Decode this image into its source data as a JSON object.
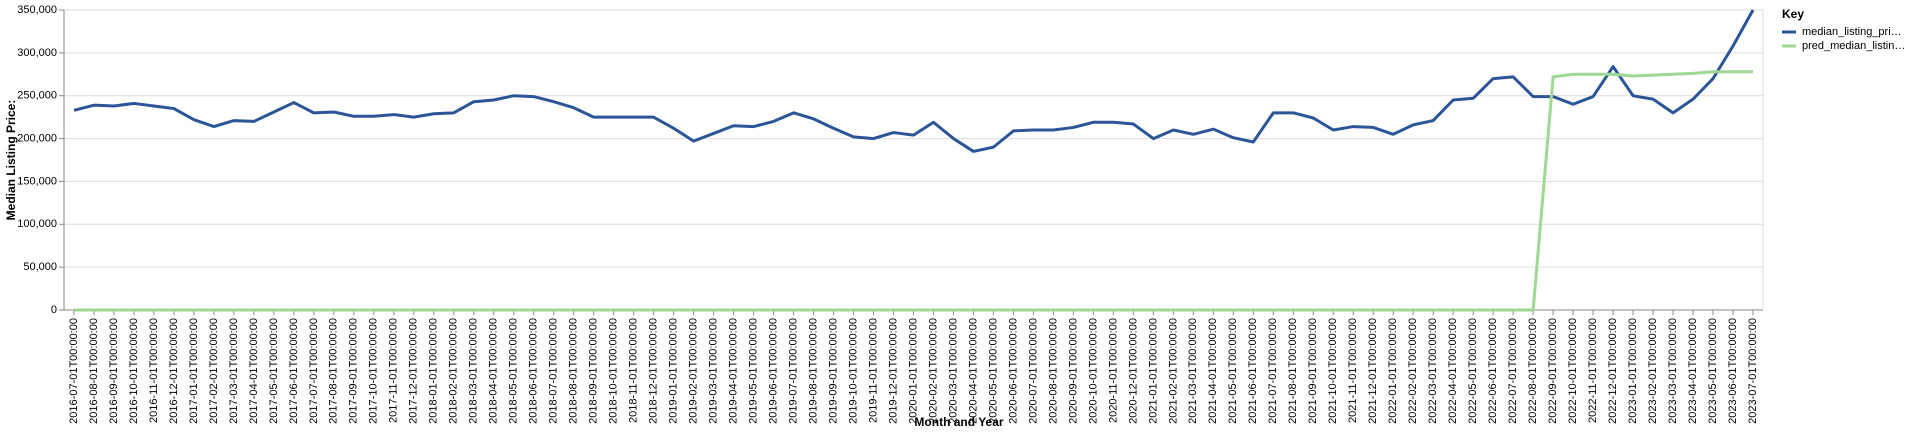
{
  "chart_data": {
    "type": "line",
    "x_label": "Month and Year",
    "y_label": "Median Listing Price:",
    "legend_title": "Key",
    "legend": "top-right",
    "grid": true,
    "categories": [
      "2016-07-01T00:00:00",
      "2016-08-01T00:00:00",
      "2016-09-01T00:00:00",
      "2016-10-01T00:00:00",
      "2016-11-01T00:00:00",
      "2016-12-01T00:00:00",
      "2017-01-01T00:00:00",
      "2017-02-01T00:00:00",
      "2017-03-01T00:00:00",
      "2017-04-01T00:00:00",
      "2017-05-01T00:00:00",
      "2017-06-01T00:00:00",
      "2017-07-01T00:00:00",
      "2017-08-01T00:00:00",
      "2017-09-01T00:00:00",
      "2017-10-01T00:00:00",
      "2017-11-01T00:00:00",
      "2017-12-01T00:00:00",
      "2018-01-01T00:00:00",
      "2018-02-01T00:00:00",
      "2018-03-01T00:00:00",
      "2018-04-01T00:00:00",
      "2018-05-01T00:00:00",
      "2018-06-01T00:00:00",
      "2018-07-01T00:00:00",
      "2018-08-01T00:00:00",
      "2018-09-01T00:00:00",
      "2018-10-01T00:00:00",
      "2018-11-01T00:00:00",
      "2018-12-01T00:00:00",
      "2019-01-01T00:00:00",
      "2019-02-01T00:00:00",
      "2019-03-01T00:00:00",
      "2019-04-01T00:00:00",
      "2019-05-01T00:00:00",
      "2019-06-01T00:00:00",
      "2019-07-01T00:00:00",
      "2019-08-01T00:00:00",
      "2019-09-01T00:00:00",
      "2019-10-01T00:00:00",
      "2019-11-01T00:00:00",
      "2019-12-01T00:00:00",
      "2020-01-01T00:00:00",
      "2020-02-01T00:00:00",
      "2020-03-01T00:00:00",
      "2020-04-01T00:00:00",
      "2020-05-01T00:00:00",
      "2020-06-01T00:00:00",
      "2020-07-01T00:00:00",
      "2020-08-01T00:00:00",
      "2020-09-01T00:00:00",
      "2020-10-01T00:00:00",
      "2020-11-01T00:00:00",
      "2020-12-01T00:00:00",
      "2021-01-01T00:00:00",
      "2021-02-01T00:00:00",
      "2021-03-01T00:00:00",
      "2021-04-01T00:00:00",
      "2021-05-01T00:00:00",
      "2021-06-01T00:00:00",
      "2021-07-01T00:00:00",
      "2021-08-01T00:00:00",
      "2021-09-01T00:00:00",
      "2021-10-01T00:00:00",
      "2021-11-01T00:00:00",
      "2021-12-01T00:00:00",
      "2022-01-01T00:00:00",
      "2022-02-01T00:00:00",
      "2022-03-01T00:00:00",
      "2022-04-01T00:00:00",
      "2022-05-01T00:00:00",
      "2022-06-01T00:00:00",
      "2022-07-01T00:00:00",
      "2022-08-01T00:00:00",
      "2022-09-01T00:00:00",
      "2022-10-01T00:00:00",
      "2022-11-01T00:00:00",
      "2022-12-01T00:00:00",
      "2023-01-01T00:00:00",
      "2023-02-01T00:00:00",
      "2023-03-01T00:00:00",
      "2023-04-01T00:00:00",
      "2023-05-01T00:00:00",
      "2023-06-01T00:00:00",
      "2023-07-01T00:00:00"
    ],
    "series": [
      {
        "name": "median_listing_pri…",
        "color": "#2c5597",
        "values": [
          233000,
          239000,
          238000,
          241000,
          238000,
          235000,
          222000,
          214000,
          221000,
          220000,
          231000,
          242000,
          230000,
          231000,
          226000,
          226000,
          228000,
          225000,
          229000,
          230000,
          243000,
          245000,
          250000,
          249000,
          243000,
          236000,
          225000,
          225000,
          225000,
          225000,
          212000,
          197000,
          206000,
          215000,
          214000,
          220000,
          230000,
          223000,
          212000,
          202000,
          200000,
          207000,
          204000,
          219000,
          200000,
          185000,
          190000,
          209000,
          210000,
          210000,
          213000,
          219000,
          219000,
          217000,
          200000,
          210000,
          205000,
          211000,
          201000,
          196000,
          230000,
          230000,
          224000,
          210000,
          214000,
          213000,
          205000,
          216000,
          221000,
          245000,
          247000,
          270000,
          272000,
          249000,
          249000,
          240000,
          249000,
          284000,
          250000,
          246000,
          230000,
          246000,
          270000,
          308000,
          350000
        ]
      },
      {
        "name": "pred_median_listin…",
        "color": "#9fd895",
        "values": [
          0,
          0,
          0,
          0,
          0,
          0,
          0,
          0,
          0,
          0,
          0,
          0,
          0,
          0,
          0,
          0,
          0,
          0,
          0,
          0,
          0,
          0,
          0,
          0,
          0,
          0,
          0,
          0,
          0,
          0,
          0,
          0,
          0,
          0,
          0,
          0,
          0,
          0,
          0,
          0,
          0,
          0,
          0,
          0,
          0,
          0,
          0,
          0,
          0,
          0,
          0,
          0,
          0,
          0,
          0,
          0,
          0,
          0,
          0,
          0,
          0,
          0,
          0,
          0,
          0,
          0,
          0,
          0,
          0,
          0,
          0,
          0,
          0,
          0,
          272000,
          275000,
          275000,
          275000,
          273000,
          274000,
          275000,
          276000,
          278000,
          278000,
          278000
        ]
      }
    ],
    "ylim": [
      0,
      350000
    ],
    "yticks": [
      0,
      {
        "value": 50000,
        "label": "50,000"
      },
      {
        "value": 100000,
        "label": "100,000"
      },
      {
        "value": 150000,
        "label": "150,000"
      },
      {
        "value": 200000,
        "label": "200,000"
      },
      {
        "value": 250000,
        "label": "250,000"
      },
      {
        "value": 300000,
        "label": "300,000"
      },
      {
        "value": 350000,
        "label": "350,000"
      }
    ]
  }
}
